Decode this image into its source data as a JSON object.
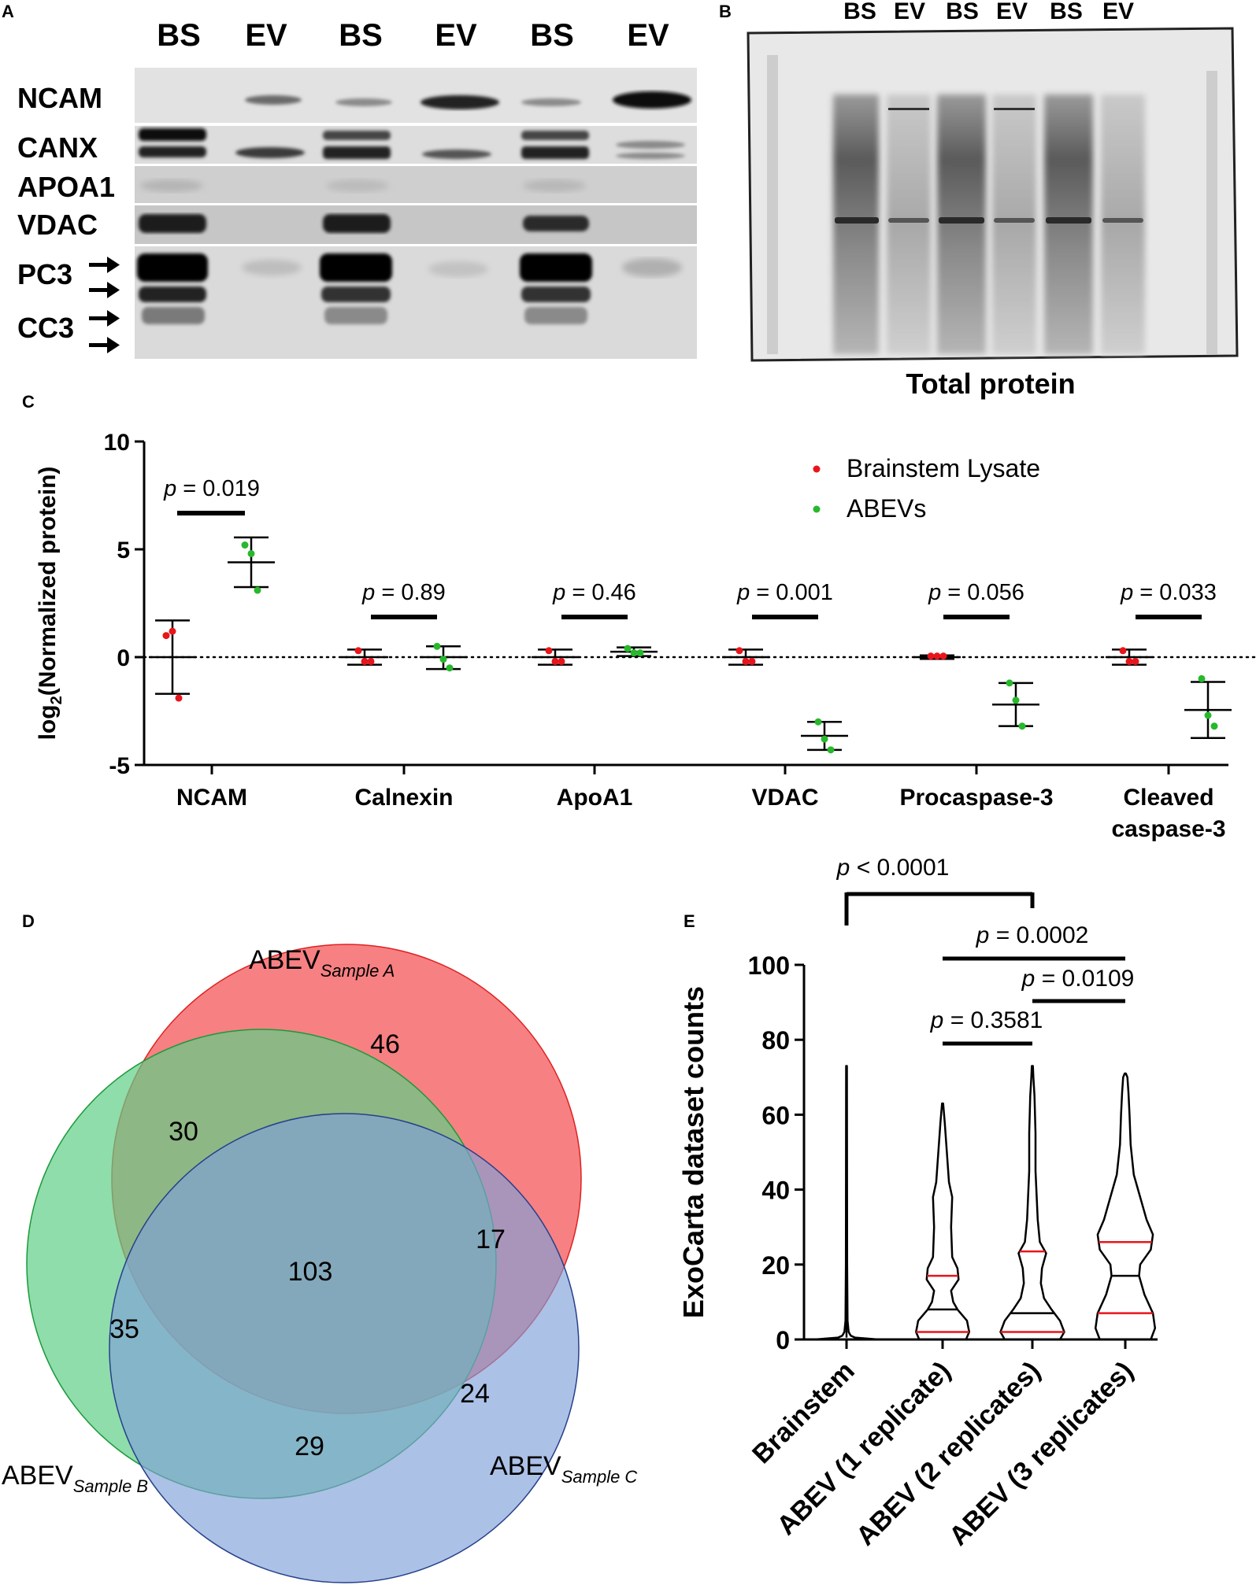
{
  "panels": {
    "a": "A",
    "b": "B",
    "c": "C",
    "d": "D",
    "e": "E"
  },
  "panel_a": {
    "lanes": [
      "BS",
      "EV",
      "BS",
      "EV",
      "BS",
      "EV"
    ],
    "blots": [
      "NCAM",
      "CANX",
      "APOA1",
      "VDAC",
      "PC3",
      "CC3"
    ]
  },
  "panel_b": {
    "lanes": [
      "BS",
      "EV",
      "BS",
      "EV",
      "BS",
      "EV"
    ],
    "caption": "Total protein"
  },
  "colors": {
    "brainstem": "#e8151b",
    "abev": "#27b82b",
    "venn_a": "#f66a6c",
    "venn_b": "#5fcf86",
    "venn_c": "#7f9fd8",
    "median": "#e8151b"
  },
  "chart_data": [
    {
      "type": "scatter",
      "title": "",
      "ylabel_main": "log",
      "ylabel_sub": "2",
      "ylabel_rest": "(Normalized protein)",
      "ylim": [
        -5,
        10
      ],
      "yticks": [
        "-5",
        "0",
        "5",
        "10"
      ],
      "categories": [
        "NCAM",
        "Calnexin",
        "ApoA1",
        "VDAC",
        "Procaspase-3",
        "Cleaved caspase-3"
      ],
      "category_lines": [
        [
          "NCAM"
        ],
        [
          "Calnexin"
        ],
        [
          "ApoA1"
        ],
        [
          "VDAC"
        ],
        [
          "Procaspase-3"
        ],
        [
          "Cleaved",
          "caspase-3"
        ]
      ],
      "legend": [
        "Brainstem Lysate",
        "ABEVs"
      ],
      "p_prefix": "p",
      "pvalues": [
        "= 0.019",
        "= 0.89",
        "= 0.46",
        "= 0.001",
        "= 0.056",
        "= 0.033"
      ],
      "series": [
        {
          "name": "Brainstem Lysate",
          "color": "#e8151b",
          "points": [
            [
              1.0,
              1.2,
              -1.9
            ],
            [
              0.3,
              -0.2,
              -0.2
            ],
            [
              0.3,
              -0.2,
              -0.2
            ],
            [
              0.3,
              -0.2,
              -0.2
            ],
            [
              0.05,
              0.05,
              0.05
            ],
            [
              0.3,
              -0.2,
              -0.2
            ]
          ],
          "mean": [
            0.0,
            0.0,
            0.0,
            0.0,
            0.0,
            0.0
          ],
          "err_hi": [
            1.7,
            0.35,
            0.35,
            0.35,
            0.08,
            0.35
          ],
          "err_lo": [
            -1.7,
            -0.35,
            -0.35,
            -0.35,
            -0.08,
            -0.35
          ]
        },
        {
          "name": "ABEVs",
          "color": "#27b82b",
          "points": [
            [
              5.2,
              4.8,
              3.1
            ],
            [
              0.5,
              -0.1,
              -0.5
            ],
            [
              0.4,
              0.2,
              0.2
            ],
            [
              -3.0,
              -3.8,
              -4.3
            ],
            [
              -1.2,
              -2.0,
              -3.2
            ],
            [
              -1.0,
              -2.7,
              -3.2
            ]
          ],
          "mean": [
            4.4,
            0.0,
            0.25,
            -3.65,
            -2.2,
            -2.45
          ],
          "err_hi": [
            5.55,
            0.5,
            0.45,
            -3.0,
            -1.2,
            -1.15
          ],
          "err_lo": [
            3.25,
            -0.55,
            0.05,
            -4.3,
            -3.2,
            -3.75
          ]
        }
      ]
    },
    {
      "type": "venn",
      "sets": [
        {
          "name": "ABEV",
          "subscript": "Sample A"
        },
        {
          "name": "ABEV",
          "subscript": "Sample B"
        },
        {
          "name": "ABEV",
          "subscript": "Sample C"
        }
      ],
      "counts": {
        "A_only": "46",
        "B_only": "35",
        "C_only": "24",
        "AB": "30",
        "AC": "17",
        "BC": "29",
        "ABC": "103"
      }
    },
    {
      "type": "violin",
      "ylabel": "ExoCarta dataset counts",
      "ylim": [
        0,
        100
      ],
      "yticks": [
        "0",
        "20",
        "40",
        "60",
        "80",
        "100"
      ],
      "categories": [
        "Brainstem",
        "ABEV (1 replicate)",
        "ABEV (2 replicates)",
        "ABEV (3 replicates)"
      ],
      "violins": [
        {
          "max": 73,
          "median": 0,
          "q1": 0,
          "q3": 0,
          "profile": [
            [
              0,
              30
            ],
            [
              0.5,
              8
            ],
            [
              1,
              4
            ],
            [
              2,
              2
            ],
            [
              5,
              1
            ],
            [
              20,
              0.6
            ],
            [
              73,
              0.4
            ]
          ]
        },
        {
          "max": 63,
          "median": 8,
          "q1": 2,
          "q3": 17,
          "profile": [
            [
              0,
              22
            ],
            [
              2,
              25
            ],
            [
              5,
              23
            ],
            [
              8,
              14
            ],
            [
              10,
              10
            ],
            [
              13,
              8
            ],
            [
              16,
              15
            ],
            [
              19,
              14
            ],
            [
              22,
              9
            ],
            [
              30,
              8
            ],
            [
              38,
              9
            ],
            [
              42,
              6
            ],
            [
              50,
              4
            ],
            [
              58,
              2
            ],
            [
              63,
              0.5
            ]
          ]
        },
        {
          "max": 73,
          "median": 7,
          "q1": 2,
          "q3": 23.5,
          "profile": [
            [
              0,
              26
            ],
            [
              2,
              30
            ],
            [
              5,
              26
            ],
            [
              8,
              18
            ],
            [
              11,
              11
            ],
            [
              15,
              8
            ],
            [
              19,
              9
            ],
            [
              23,
              13
            ],
            [
              26,
              7
            ],
            [
              32,
              5
            ],
            [
              45,
              3
            ],
            [
              55,
              3
            ],
            [
              65,
              2
            ],
            [
              70,
              1
            ],
            [
              73,
              0.5
            ]
          ]
        },
        {
          "max": 71,
          "median": 17,
          "q1": 7,
          "q3": 26,
          "profile": [
            [
              0,
              24
            ],
            [
              3,
              28
            ],
            [
              7,
              26
            ],
            [
              12,
              18
            ],
            [
              17,
              13
            ],
            [
              20,
              14
            ],
            [
              24,
              24
            ],
            [
              28,
              26
            ],
            [
              32,
              20
            ],
            [
              38,
              14
            ],
            [
              44,
              8
            ],
            [
              52,
              5
            ],
            [
              60,
              4
            ],
            [
              66,
              3
            ],
            [
              70,
              2
            ],
            [
              71,
              0.5
            ]
          ]
        }
      ],
      "comparisons": [
        {
          "label_p": "p",
          "label_rest": " < 0.0001",
          "from": "Brainstem",
          "to": "ABEV (2 replicates)"
        },
        {
          "label_p": "p",
          "label_rest": " = 0.0002",
          "from": "ABEV (1 replicate)",
          "to": "ABEV (3 replicates)"
        },
        {
          "label_p": "p",
          "label_rest": " = 0.0109",
          "from": "ABEV (2 replicates)",
          "to": "ABEV (3 replicates)"
        },
        {
          "label_p": "p",
          "label_rest": " = 0.3581",
          "from": "ABEV (1 replicate)",
          "to": "ABEV (2 replicates)"
        }
      ]
    }
  ]
}
